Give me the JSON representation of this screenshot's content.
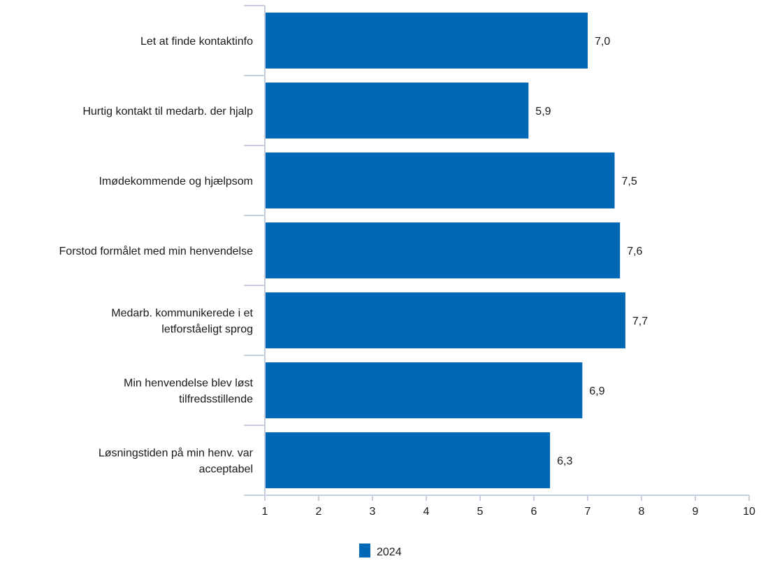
{
  "chart_data": {
    "type": "bar",
    "orientation": "horizontal",
    "categories": [
      [
        "Let at finde kontaktinfo"
      ],
      [
        "Hurtig kontakt til medarb. der hjalp"
      ],
      [
        "Imødekommende og hjælpsom"
      ],
      [
        "Forstod formålet med min henvendelse"
      ],
      [
        "Medarb. kommunikerede i et",
        "letforståeligt sprog"
      ],
      [
        "Min henvendelse blev løst",
        "tilfredsstillende"
      ],
      [
        "Løsningstiden på min henv. var",
        "acceptabel"
      ]
    ],
    "series": [
      {
        "name": "2024",
        "color": "#0068b4",
        "values": [
          7.0,
          5.9,
          7.5,
          7.6,
          7.7,
          6.9,
          6.3
        ],
        "value_labels": [
          "7,0",
          "5,9",
          "7,5",
          "7,6",
          "7,7",
          "6,9",
          "6,3"
        ]
      }
    ],
    "xlim": [
      1,
      10
    ],
    "x_ticks": [
      "1",
      "2",
      "3",
      "4",
      "5",
      "6",
      "7",
      "8",
      "9",
      "10"
    ],
    "grid": false,
    "legend_position": "bottom-center",
    "axis_color": "#c5cfe0"
  }
}
